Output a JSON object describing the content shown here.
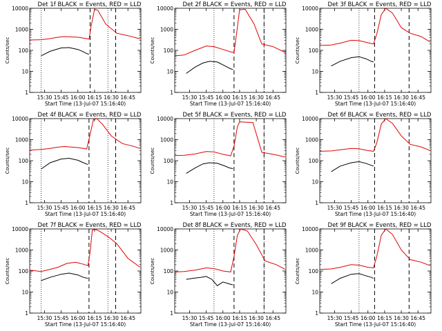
{
  "panel_title_suffix": "BLACK = Events, RED = LLD",
  "colors": {
    "events": "#000000",
    "lld": "#e00000",
    "axis": "#000000"
  },
  "chart_data": [
    {
      "type": "line",
      "detector": "Det 1f",
      "title": "Det 1f BLACK = Events, RED = LLD",
      "xlabel": "Start Time (13-Jul-07 15:16:40)",
      "ylabel": "Counts/sec",
      "xlim": [
        "15:16:40",
        "16:56:40"
      ],
      "ylim": [
        1,
        10000
      ],
      "yscale": "log",
      "xticks": [
        "15:30",
        "15:45",
        "16:00",
        "16:15",
        "16:30",
        "16:45"
      ],
      "yticks": [
        "1",
        "10",
        "100",
        "1000",
        "10000"
      ],
      "vlines_dotted": [
        "15:27",
        "16:27"
      ],
      "vlines_dashed": [
        "16:11",
        "16:34"
      ],
      "series": [
        {
          "name": "Events",
          "x": [
            "15:27",
            "15:35",
            "15:45",
            "15:52",
            "16:00",
            "16:05",
            "16:08",
            "16:10"
          ],
          "values": [
            55,
            90,
            130,
            135,
            110,
            85,
            70,
            65
          ]
        },
        {
          "name": "LLD",
          "x": [
            "15:17",
            "15:27",
            "15:35",
            "15:42",
            "15:48",
            "16:00",
            "16:08",
            "16:10",
            "16:12",
            "16:15",
            "16:18",
            "16:25",
            "16:35",
            "16:45",
            "16:56"
          ],
          "values": [
            310,
            320,
            360,
            420,
            450,
            420,
            360,
            340,
            1500,
            9000,
            8000,
            1800,
            650,
            500,
            350
          ]
        }
      ]
    },
    {
      "type": "line",
      "detector": "Det 2f",
      "title": "Det 2f BLACK = Events, RED = LLD",
      "xlabel": "Start Time (13-Jul-07 15:16:40)",
      "ylabel": "Counts/sec",
      "xlim": [
        "15:16:40",
        "16:56:40"
      ],
      "ylim": [
        1,
        10000
      ],
      "yscale": "log",
      "xticks": [
        "15:30",
        "15:45",
        "16:00",
        "16:15",
        "16:30",
        "16:45"
      ],
      "yticks": [
        "1",
        "10",
        "100",
        "1000",
        "10000"
      ],
      "vlines_dotted": [
        "15:52",
        "16:37"
      ],
      "vlines_dashed": [
        "16:10",
        "16:37"
      ],
      "series": [
        {
          "name": "Events",
          "x": [
            "15:27",
            "15:35",
            "15:42",
            "15:48",
            "15:55",
            "16:02",
            "16:06",
            "16:09"
          ],
          "values": [
            8,
            16,
            25,
            30,
            28,
            18,
            14,
            12
          ]
        },
        {
          "name": "LLD",
          "x": [
            "15:17",
            "15:25",
            "15:35",
            "15:45",
            "15:52",
            "16:00",
            "16:07",
            "16:10",
            "16:13",
            "16:15",
            "16:20",
            "16:28",
            "16:35",
            "16:45",
            "16:56"
          ],
          "values": [
            55,
            60,
            100,
            160,
            150,
            110,
            85,
            80,
            1200,
            8500,
            9000,
            1800,
            200,
            150,
            80
          ]
        }
      ]
    },
    {
      "type": "line",
      "detector": "Det 3f",
      "title": "Det 3f BLACK = Events, RED = LLD",
      "xlabel": "Start Time (13-Jul-07 15:16:40)",
      "ylabel": "Counts/sec",
      "xlim": [
        "15:16:40",
        "16:56:40"
      ],
      "ylim": [
        1,
        10000
      ],
      "yscale": "log",
      "xticks": [
        "15:30",
        "15:45",
        "16:00",
        "16:15",
        "16:30",
        "16:45"
      ],
      "yticks": [
        "1",
        "10",
        "100",
        "1000",
        "10000"
      ],
      "vlines_dotted": [
        "15:52"
      ],
      "vlines_dashed": [
        "16:06",
        "16:37"
      ],
      "series": [
        {
          "name": "Events",
          "x": [
            "15:27",
            "15:35",
            "15:45",
            "15:52",
            "15:58",
            "16:03",
            "16:05"
          ],
          "values": [
            18,
            30,
            45,
            50,
            40,
            30,
            28
          ]
        },
        {
          "name": "LLD",
          "x": [
            "15:17",
            "15:27",
            "15:35",
            "15:45",
            "15:52",
            "16:00",
            "16:05",
            "16:08",
            "16:12",
            "16:16",
            "16:22",
            "16:30",
            "16:38",
            "16:48",
            "16:56"
          ],
          "values": [
            170,
            180,
            220,
            300,
            290,
            230,
            200,
            600,
            5000,
            10000,
            6000,
            1200,
            650,
            450,
            250
          ]
        }
      ]
    },
    {
      "type": "line",
      "detector": "Det 4f",
      "title": "Det 4f BLACK = Events, RED = LLD",
      "xlabel": "Start Time (13-Jul-07 15:16:40)",
      "ylabel": "Counts/sec",
      "xlim": [
        "15:16:40",
        "16:56:40"
      ],
      "ylim": [
        1,
        10000
      ],
      "yscale": "log",
      "xticks": [
        "15:30",
        "15:45",
        "16:00",
        "16:15",
        "16:30",
        "16:45"
      ],
      "yticks": [
        "1",
        "10",
        "100",
        "1000",
        "10000"
      ],
      "vlines_dotted": [
        "15:27",
        "16:27"
      ],
      "vlines_dashed": [
        "16:10",
        "16:34"
      ],
      "series": [
        {
          "name": "Events",
          "x": [
            "15:27",
            "15:35",
            "15:45",
            "15:52",
            "16:00",
            "16:05",
            "16:09"
          ],
          "values": [
            40,
            80,
            120,
            130,
            105,
            80,
            65
          ]
        },
        {
          "name": "LLD",
          "x": [
            "15:17",
            "15:27",
            "15:35",
            "15:42",
            "15:48",
            "16:00",
            "16:08",
            "16:11",
            "16:14",
            "16:17",
            "16:22",
            "16:30",
            "16:40",
            "16:50",
            "16:56"
          ],
          "values": [
            320,
            340,
            380,
            440,
            470,
            420,
            360,
            1800,
            9000,
            10000,
            5500,
            1500,
            650,
            480,
            380
          ]
        }
      ]
    },
    {
      "type": "line",
      "detector": "Det 5f",
      "title": "Det 5f BLACK = Events, RED = LLD",
      "xlabel": "Start Time (13-Jul-07 15:16:40)",
      "ylabel": "Counts/sec",
      "xlim": [
        "15:16:40",
        "16:56:40"
      ],
      "ylim": [
        1,
        10000
      ],
      "yscale": "log",
      "xticks": [
        "15:30",
        "15:45",
        "16:00",
        "16:15",
        "16:30",
        "16:45"
      ],
      "yticks": [
        "1",
        "10",
        "100",
        "1000",
        "10000"
      ],
      "vlines_dotted": [
        "15:52",
        "16:37"
      ],
      "vlines_dashed": [
        "16:10",
        "16:37"
      ],
      "series": [
        {
          "name": "Events",
          "x": [
            "15:27",
            "15:35",
            "15:42",
            "15:48",
            "15:55",
            "16:02",
            "16:06",
            "16:09"
          ],
          "values": [
            25,
            45,
            70,
            80,
            75,
            55,
            45,
            42
          ]
        },
        {
          "name": "LLD",
          "x": [
            "15:17",
            "15:25",
            "15:35",
            "15:45",
            "15:52",
            "16:00",
            "16:07",
            "16:10",
            "16:13",
            "16:15",
            "16:20",
            "16:27",
            "16:35",
            "16:45",
            "16:56"
          ],
          "values": [
            175,
            180,
            210,
            270,
            260,
            200,
            170,
            500,
            4000,
            7000,
            6800,
            6500,
            250,
            200,
            150
          ]
        }
      ]
    },
    {
      "type": "line",
      "detector": "Det 6f",
      "title": "Det 6f BLACK = Events, RED = LLD",
      "xlabel": "Start Time (13-Jul-07 15:16:40)",
      "ylabel": "Counts/sec",
      "xlim": [
        "15:16:40",
        "16:56:40"
      ],
      "ylim": [
        1,
        10000
      ],
      "yscale": "log",
      "xticks": [
        "15:30",
        "15:45",
        "16:00",
        "16:15",
        "16:30",
        "16:45"
      ],
      "yticks": [
        "1",
        "10",
        "100",
        "1000",
        "10000"
      ],
      "vlines_dotted": [
        "15:52"
      ],
      "vlines_dashed": [
        "16:06",
        "16:37"
      ],
      "series": [
        {
          "name": "Events",
          "x": [
            "15:27",
            "15:35",
            "15:45",
            "15:52",
            "15:58",
            "16:03",
            "16:05"
          ],
          "values": [
            30,
            55,
            80,
            90,
            75,
            60,
            55
          ]
        },
        {
          "name": "LLD",
          "x": [
            "15:17",
            "15:27",
            "15:35",
            "15:45",
            "15:52",
            "16:00",
            "16:05",
            "16:08",
            "16:12",
            "16:16",
            "16:22",
            "16:30",
            "16:38",
            "16:48",
            "16:56"
          ],
          "values": [
            280,
            290,
            330,
            380,
            370,
            300,
            280,
            700,
            5500,
            10000,
            6000,
            1500,
            600,
            450,
            300
          ]
        }
      ]
    },
    {
      "type": "line",
      "detector": "Det 7f",
      "title": "Det 7f BLACK = Events, RED = LLD",
      "xlabel": "Start Time (13-Jul-07 15:16:40)",
      "ylabel": "Counts/sec",
      "xlim": [
        "15:16:40",
        "16:56:40"
      ],
      "ylim": [
        1,
        10000
      ],
      "yscale": "log",
      "xticks": [
        "15:30",
        "15:45",
        "16:00",
        "16:15",
        "16:30",
        "16:45"
      ],
      "yticks": [
        "1",
        "10",
        "100",
        "1000",
        "10000"
      ],
      "vlines_dotted": [
        "15:27",
        "16:27"
      ],
      "vlines_dashed": [
        "16:10",
        "16:34"
      ],
      "series": [
        {
          "name": "Events",
          "x": [
            "15:27",
            "15:35",
            "15:45",
            "15:52",
            "16:00",
            "16:05",
            "16:09"
          ],
          "values": [
            35,
            50,
            70,
            80,
            65,
            50,
            45
          ]
        },
        {
          "name": "LLD",
          "x": [
            "15:17",
            "15:27",
            "15:35",
            "15:42",
            "15:50",
            "15:58",
            "16:05",
            "16:09",
            "16:11",
            "16:13",
            "16:16",
            "16:20",
            "16:28",
            "16:35",
            "16:45",
            "16:56"
          ],
          "values": [
            110,
            95,
            120,
            150,
            230,
            260,
            210,
            180,
            800,
            9000,
            9500,
            7500,
            4000,
            2000,
            400,
            150
          ]
        }
      ]
    },
    {
      "type": "line",
      "detector": "Det 8f",
      "title": "Det 8f BLACK = Events, RED = LLD",
      "xlabel": "Start Time (13-Jul-07 15:16:40)",
      "ylabel": "Counts/sec",
      "xlim": [
        "15:16:40",
        "16:56:40"
      ],
      "ylim": [
        1,
        10000
      ],
      "yscale": "log",
      "xticks": [
        "15:30",
        "15:45",
        "16:00",
        "16:15",
        "16:30",
        "16:45"
      ],
      "yticks": [
        "1",
        "10",
        "100",
        "1000",
        "10000"
      ],
      "vlines_dotted": [
        "15:52",
        "16:37"
      ],
      "vlines_dashed": [
        "16:10",
        "16:37"
      ],
      "series": [
        {
          "name": "Events",
          "x": [
            "15:27",
            "15:33",
            "15:40",
            "15:45",
            "15:50",
            "15:55",
            "16:00",
            "16:05",
            "16:09"
          ],
          "values": [
            40,
            45,
            50,
            55,
            40,
            20,
            30,
            25,
            22
          ]
        },
        {
          "name": "LLD",
          "x": [
            "15:17",
            "15:25",
            "15:35",
            "15:45",
            "15:52",
            "16:00",
            "16:07",
            "16:10",
            "16:13",
            "16:16",
            "16:22",
            "16:30",
            "16:38",
            "16:48",
            "16:56"
          ],
          "values": [
            90,
            95,
            110,
            140,
            130,
            100,
            90,
            500,
            5000,
            10000,
            8000,
            1800,
            300,
            200,
            120
          ]
        }
      ]
    },
    {
      "type": "line",
      "detector": "Det 9f",
      "title": "Det 9f BLACK = Events, RED = LLD",
      "xlabel": "Start Time (13-Jul-07 15:16:40)",
      "ylabel": "Counts/sec",
      "xlim": [
        "15:16:40",
        "16:56:40"
      ],
      "ylim": [
        1,
        10000
      ],
      "yscale": "log",
      "xticks": [
        "15:30",
        "15:45",
        "16:00",
        "16:15",
        "16:30",
        "16:45"
      ],
      "yticks": [
        "1",
        "10",
        "100",
        "1000",
        "10000"
      ],
      "vlines_dotted": [
        "15:52"
      ],
      "vlines_dashed": [
        "16:06",
        "16:37"
      ],
      "series": [
        {
          "name": "Events",
          "x": [
            "15:27",
            "15:35",
            "15:45",
            "15:52",
            "15:58",
            "16:03",
            "16:05"
          ],
          "values": [
            25,
            45,
            70,
            75,
            60,
            50,
            45
          ]
        },
        {
          "name": "LLD",
          "x": [
            "15:17",
            "15:27",
            "15:35",
            "15:45",
            "15:52",
            "16:00",
            "16:05",
            "16:08",
            "16:12",
            "16:16",
            "16:22",
            "16:30",
            "16:38",
            "16:48",
            "16:56"
          ],
          "values": [
            120,
            125,
            150,
            200,
            190,
            150,
            140,
            500,
            5000,
            10000,
            5500,
            1000,
            350,
            260,
            180
          ]
        }
      ]
    }
  ]
}
